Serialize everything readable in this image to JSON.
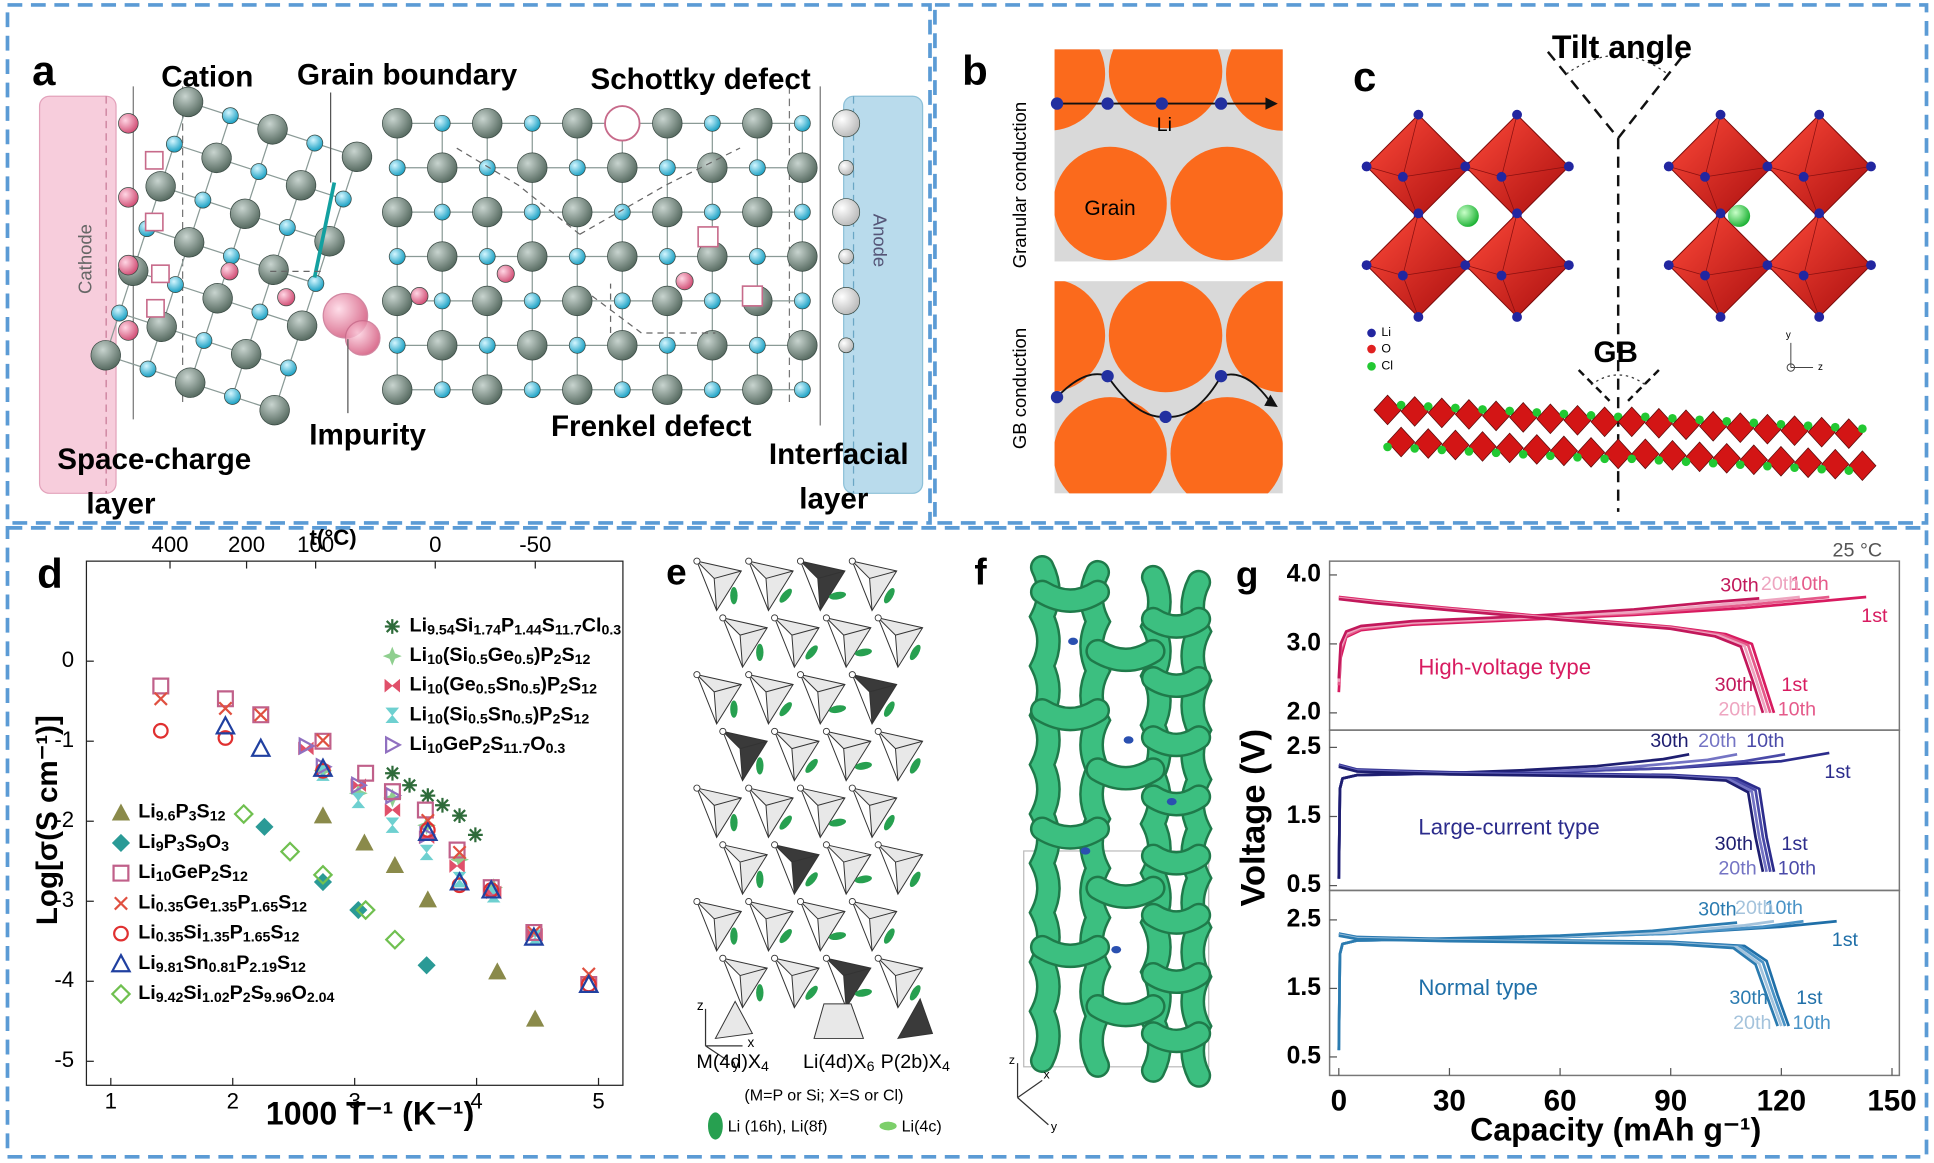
{
  "panels": {
    "a": {
      "label": "a",
      "cation": "Cation",
      "grain_boundary": "Grain boundary",
      "schottky": "Schottky defect",
      "cathode": "Cathode",
      "anode": "Anode",
      "impurity": "Impurity",
      "frenkel": "Frenkel defect",
      "space_charge": [
        "Space-charge",
        "layer"
      ],
      "interfacial": [
        "Interfacial",
        "layer"
      ]
    },
    "b": {
      "label": "b",
      "li": "Li",
      "grain": "Grain",
      "granular": "Granular conduction",
      "gb": "GB conduction"
    },
    "c": {
      "label": "c",
      "tilt": "Tilt angle",
      "gb": "GB",
      "legend": [
        "Li",
        "O",
        "Cl"
      ],
      "axes": [
        "y",
        "z"
      ]
    },
    "d": {
      "label": "d"
    },
    "e": {
      "label": "e",
      "axes": [
        "z",
        "x",
        "y"
      ],
      "units": [
        "M(4d)X4",
        "Li(4d)X6",
        "P(2b)X4"
      ],
      "note": "(M=P or Si; X=S or Cl)",
      "li_sites": [
        "Li (16h), Li(8f)",
        "Li(4c)"
      ]
    },
    "f": {
      "label": "f",
      "axes": [
        "z",
        "x",
        "y"
      ]
    },
    "g": {
      "label": "g"
    }
  },
  "chart_data": [
    {
      "type": "scatter",
      "x_label": "1000 T⁻¹ (K⁻¹)",
      "y_label": "Log[σ(S cm⁻¹)]",
      "x2_label": "t(°C)",
      "xlim": [
        0.8,
        5.2
      ],
      "ylim": [
        -5.3,
        1.25
      ],
      "xticks": [
        1,
        2,
        3,
        4,
        5
      ],
      "yticks": [
        0,
        -1,
        -2,
        -3,
        -4,
        -5
      ],
      "x2ticks": [
        400,
        200,
        100,
        0,
        -50
      ],
      "series": [
        {
          "name": "Li9.54Si1.74P1.44S11.7Cl0.3",
          "color": "#2e6b3a",
          "marker": "asterisk",
          "x": [
            3.31,
            3.45,
            3.6,
            3.72,
            3.86,
            3.99
          ],
          "values": [
            -1.4,
            -1.55,
            -1.68,
            -1.8,
            -1.93,
            -2.17
          ]
        },
        {
          "name": "Li10(Si0.5Ge0.5)P2S12",
          "color": "#8fcf8f",
          "marker": "star",
          "x": [
            2.74,
            3.03,
            3.31,
            3.59,
            3.86,
            4.14
          ],
          "values": [
            -1.37,
            -1.65,
            -1.71,
            -2.05,
            -2.48,
            -2.83
          ]
        },
        {
          "name": "Li10(Ge0.5Sn0.5)P2S12",
          "color": "#e0506a",
          "marker": "bowtie",
          "x": [
            2.6,
            3.03,
            3.31,
            3.59,
            3.84,
            4.14,
            4.48
          ],
          "values": [
            -1.09,
            -1.55,
            -1.86,
            -2.2,
            -2.56,
            -2.89,
            -3.42
          ]
        },
        {
          "name": "Li10(Si0.5Sn0.5)P2S12",
          "color": "#6ed0d0",
          "marker": "hourglass",
          "x": [
            2.74,
            3.03,
            3.31,
            3.59,
            3.86,
            4.14,
            4.48
          ],
          "values": [
            -1.4,
            -1.74,
            -2.05,
            -2.39,
            -2.73,
            -2.92,
            -3.45
          ]
        },
        {
          "name": "Li10GeP2S11.7O0.3",
          "color": "#9070c0",
          "marker": "triangle-right-open",
          "x": [
            2.6,
            2.74,
            3.03,
            3.31,
            3.59
          ],
          "values": [
            -1.06,
            -1.32,
            -1.55,
            -1.68,
            -2.17
          ]
        },
        {
          "name": "Li9.6P3S12",
          "color": "#8a8a4a",
          "marker": "triangle-filled",
          "x": [
            2.74,
            3.08,
            3.33,
            3.6,
            4.17,
            4.48
          ],
          "values": [
            -1.93,
            -2.27,
            -2.55,
            -2.98,
            -3.88,
            -4.47
          ]
        },
        {
          "name": "Li9P3S9O3",
          "color": "#2a9a96",
          "marker": "diamond-filled",
          "x": [
            2.26,
            2.74,
            3.03,
            3.59
          ],
          "values": [
            -2.07,
            -2.76,
            -3.11,
            -3.8
          ]
        },
        {
          "name": "Li10GeP2S12",
          "color": "#c0608a",
          "marker": "square-open",
          "x": [
            1.41,
            1.94,
            2.23,
            2.74,
            3.09,
            3.31,
            3.58,
            3.84,
            4.12,
            4.47,
            4.92
          ],
          "values": [
            -0.31,
            -0.47,
            -0.67,
            -1.0,
            -1.4,
            -1.63,
            -1.86,
            -2.36,
            -2.83,
            -3.39,
            -4.04
          ]
        },
        {
          "name": "Li0.35Ge1.35P1.65S12",
          "color": "#e05040",
          "marker": "x",
          "x": [
            1.41,
            1.94,
            2.23,
            2.74,
            3.6,
            3.86,
            4.47,
            4.92
          ],
          "values": [
            -0.47,
            -0.59,
            -0.67,
            -0.99,
            -1.99,
            -2.39,
            -3.39,
            -3.91
          ]
        },
        {
          "name": "Li0.35Si1.35P1.65S12",
          "color": "#e03030",
          "marker": "circle-open",
          "x": [
            1.41,
            1.94,
            2.74,
            3.6,
            3.86,
            4.12,
            4.92
          ],
          "values": [
            -0.87,
            -0.96,
            -1.37,
            -2.11,
            -2.8,
            -2.86,
            -4.04
          ]
        },
        {
          "name": "Li9.81Sn0.81P2.19S12",
          "color": "#2040a0",
          "marker": "triangle-open",
          "x": [
            1.94,
            2.23,
            2.74,
            3.6,
            3.86,
            4.12,
            4.47,
            4.92
          ],
          "values": [
            -0.81,
            -1.09,
            -1.34,
            -2.14,
            -2.76,
            -2.86,
            -3.45,
            -4.04
          ]
        },
        {
          "name": "Li9.42Si1.02P2S9.96O2.04",
          "color": "#70c050",
          "marker": "diamond-open",
          "x": [
            2.09,
            2.47,
            2.74,
            3.09,
            3.33
          ],
          "values": [
            -1.91,
            -2.38,
            -2.67,
            -3.11,
            -3.48
          ]
        }
      ]
    },
    {
      "type": "line",
      "annotation": "High-voltage type",
      "corner_note": "25 °C",
      "xlim": [
        -2.5,
        152
      ],
      "ylim": [
        1.75,
        4.2
      ],
      "yticks": [
        {
          "value": 4,
          "label": "4.0"
        },
        {
          "value": 3,
          "label": "3.0"
        },
        {
          "value": 2,
          "label": "2.0"
        }
      ],
      "series": [
        {
          "name": "1st",
          "color": "#d81b60",
          "x": [
            0,
            0.5,
            2,
            6,
            20,
            50,
            80,
            110,
            143
          ],
          "values": [
            2.3,
            2.8,
            3.1,
            3.2,
            3.28,
            3.35,
            3.42,
            3.52,
            3.68
          ]
        },
        {
          "name": "10th",
          "color": "#e55a8a",
          "x": [
            0,
            0.5,
            2,
            6,
            20,
            50,
            80,
            110,
            133
          ],
          "values": [
            2.4,
            2.9,
            3.12,
            3.22,
            3.3,
            3.37,
            3.44,
            3.56,
            3.68
          ]
        },
        {
          "name": "20th",
          "color": "#eea5c0",
          "x": [
            0,
            0.5,
            2,
            6,
            20,
            50,
            80,
            110,
            125
          ],
          "values": [
            2.45,
            2.95,
            3.15,
            3.24,
            3.31,
            3.38,
            3.46,
            3.6,
            3.68
          ]
        },
        {
          "name": "30th",
          "color": "#c2185b",
          "x": [
            0,
            0.5,
            2,
            6,
            20,
            50,
            80,
            100,
            114
          ],
          "values": [
            2.5,
            3.0,
            3.18,
            3.26,
            3.33,
            3.4,
            3.5,
            3.6,
            3.66
          ]
        },
        {
          "name": "1st",
          "color": "#d81b60",
          "x": [
            0,
            10,
            30,
            60,
            90,
            105,
            112,
            115,
            118
          ],
          "values": [
            3.68,
            3.62,
            3.52,
            3.38,
            3.25,
            3.14,
            3.0,
            2.5,
            2.0
          ]
        },
        {
          "name": "10th",
          "color": "#e55a8a",
          "x": [
            0,
            10,
            30,
            60,
            90,
            104,
            111,
            114,
            117
          ],
          "values": [
            3.67,
            3.61,
            3.51,
            3.37,
            3.24,
            3.13,
            2.98,
            2.5,
            2.0
          ]
        },
        {
          "name": "20th",
          "color": "#eea5c0",
          "x": [
            0,
            10,
            30,
            60,
            90,
            103,
            110,
            113,
            116
          ],
          "values": [
            3.66,
            3.6,
            3.5,
            3.36,
            3.23,
            3.12,
            2.97,
            2.5,
            2.0
          ]
        },
        {
          "name": "30th",
          "color": "#c2185b",
          "x": [
            0,
            10,
            30,
            60,
            90,
            102,
            109,
            112,
            115
          ],
          "values": [
            3.65,
            3.59,
            3.49,
            3.35,
            3.22,
            3.11,
            2.96,
            2.5,
            2.0
          ]
        }
      ]
    },
    {
      "type": "line",
      "annotation": "Large-current type",
      "y_label": "Voltage (V)",
      "xlim": [
        -2.5,
        152
      ],
      "ylim": [
        0.43,
        2.75
      ],
      "yticks": [
        2.5,
        1.5,
        0.5
      ],
      "series": [
        {
          "name": "1st",
          "color": "#2c2c8c",
          "x": [
            0,
            0.3,
            1,
            5,
            30,
            60,
            90,
            120,
            133
          ],
          "values": [
            0.6,
            1.9,
            2.05,
            2.1,
            2.12,
            2.15,
            2.2,
            2.3,
            2.42
          ]
        },
        {
          "name": "10th",
          "color": "#4a4aa8",
          "x": [
            0,
            0.3,
            1,
            5,
            30,
            60,
            90,
            110,
            121
          ],
          "values": [
            0.6,
            1.9,
            2.05,
            2.1,
            2.12,
            2.15,
            2.2,
            2.3,
            2.4
          ]
        },
        {
          "name": "20th",
          "color": "#7474c4",
          "x": [
            0,
            0.3,
            1,
            5,
            30,
            60,
            80,
            100,
            108
          ],
          "values": [
            0.6,
            1.9,
            2.05,
            2.1,
            2.12,
            2.16,
            2.22,
            2.32,
            2.4
          ]
        },
        {
          "name": "30th",
          "color": "#1e1e70",
          "x": [
            0,
            0.3,
            1,
            5,
            30,
            50,
            70,
            88,
            95
          ],
          "values": [
            0.6,
            1.9,
            2.05,
            2.1,
            2.13,
            2.17,
            2.23,
            2.33,
            2.4
          ]
        },
        {
          "name": "1st",
          "color": "#2c2c8c",
          "x": [
            0,
            5,
            30,
            60,
            90,
            108,
            114,
            116,
            118
          ],
          "values": [
            2.25,
            2.18,
            2.14,
            2.12,
            2.1,
            2.05,
            1.9,
            1.2,
            0.7
          ]
        },
        {
          "name": "10th",
          "color": "#4a4aa8",
          "x": [
            0,
            5,
            30,
            60,
            90,
            107,
            113,
            115,
            117
          ],
          "values": [
            2.24,
            2.17,
            2.13,
            2.11,
            2.09,
            2.04,
            1.88,
            1.2,
            0.7
          ]
        },
        {
          "name": "20th",
          "color": "#7474c4",
          "x": [
            0,
            5,
            30,
            60,
            90,
            106,
            112,
            114,
            116
          ],
          "values": [
            2.23,
            2.16,
            2.12,
            2.1,
            2.08,
            2.03,
            1.86,
            1.2,
            0.7
          ]
        },
        {
          "name": "30th",
          "color": "#1e1e70",
          "x": [
            0,
            5,
            30,
            60,
            90,
            105,
            111,
            113,
            115
          ],
          "values": [
            2.22,
            2.15,
            2.11,
            2.09,
            2.07,
            2.02,
            1.85,
            1.2,
            0.7
          ]
        }
      ]
    },
    {
      "type": "line",
      "annotation": "Normal type",
      "x_label": "Capacity (mAh g⁻¹)",
      "xlim": [
        -2.5,
        152
      ],
      "ylim": [
        0.23,
        2.93
      ],
      "xticks": [
        0,
        30,
        60,
        90,
        120,
        150
      ],
      "yticks": [
        2.5,
        1.5,
        0.5
      ],
      "series": [
        {
          "name": "1st",
          "color": "#1f6fa8",
          "x": [
            0,
            0.3,
            1,
            5,
            30,
            60,
            90,
            120,
            135
          ],
          "values": [
            0.6,
            2.0,
            2.15,
            2.2,
            2.22,
            2.25,
            2.3,
            2.4,
            2.48
          ]
        },
        {
          "name": "10th",
          "color": "#4a93c6",
          "x": [
            0,
            0.3,
            1,
            5,
            30,
            60,
            90,
            115,
            126
          ],
          "values": [
            0.6,
            2.0,
            2.15,
            2.2,
            2.22,
            2.25,
            2.3,
            2.4,
            2.48
          ]
        },
        {
          "name": "20th",
          "color": "#a4c3dc",
          "x": [
            0,
            0.3,
            1,
            5,
            30,
            60,
            90,
            110,
            118
          ],
          "values": [
            0.6,
            2.0,
            2.15,
            2.2,
            2.22,
            2.26,
            2.32,
            2.42,
            2.48
          ]
        },
        {
          "name": "30th",
          "color": "#2b7bb0",
          "x": [
            0,
            0.3,
            1,
            5,
            30,
            60,
            85,
            100,
            108
          ],
          "values": [
            0.6,
            2.0,
            2.15,
            2.2,
            2.23,
            2.27,
            2.34,
            2.42,
            2.46
          ]
        },
        {
          "name": "1st",
          "color": "#1f6fa8",
          "x": [
            0,
            5,
            30,
            60,
            90,
            110,
            116,
            119,
            122
          ],
          "values": [
            2.3,
            2.25,
            2.22,
            2.2,
            2.18,
            2.12,
            1.9,
            1.4,
            0.95
          ]
        },
        {
          "name": "10th",
          "color": "#4a93c6",
          "x": [
            0,
            5,
            30,
            60,
            90,
            109,
            115,
            118,
            121
          ],
          "values": [
            2.29,
            2.24,
            2.21,
            2.19,
            2.17,
            2.11,
            1.88,
            1.4,
            0.95
          ]
        },
        {
          "name": "20th",
          "color": "#a4c3dc",
          "x": [
            0,
            5,
            30,
            60,
            90,
            108,
            114,
            117,
            120
          ],
          "values": [
            2.28,
            2.23,
            2.2,
            2.18,
            2.16,
            2.1,
            1.86,
            1.4,
            0.95
          ]
        },
        {
          "name": "30th",
          "color": "#2b7bb0",
          "x": [
            0,
            5,
            30,
            60,
            90,
            107,
            113,
            116,
            119
          ],
          "values": [
            2.27,
            2.22,
            2.19,
            2.17,
            2.15,
            2.09,
            1.85,
            1.4,
            0.95
          ]
        }
      ]
    }
  ]
}
